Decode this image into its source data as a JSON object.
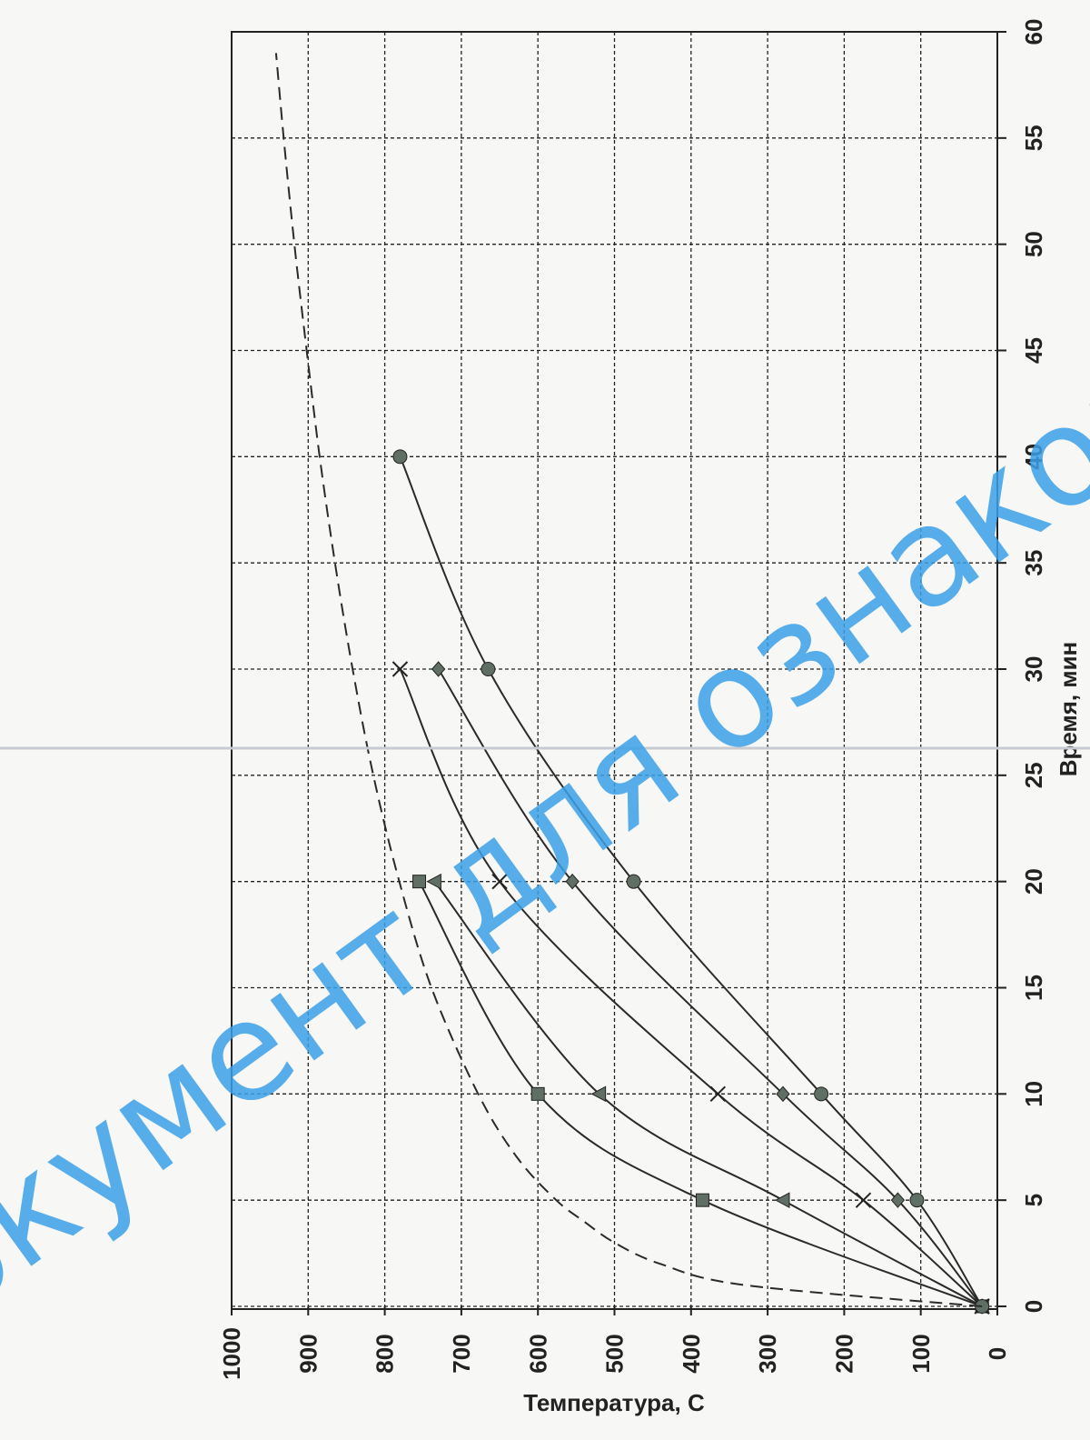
{
  "chart_data": {
    "type": "line",
    "title": "",
    "xlabel": "Время, мин",
    "ylabel": "Температура, С",
    "xlim": [
      0,
      60
    ],
    "ylim": [
      0,
      1000
    ],
    "x_ticks": [
      "0",
      "5",
      "10",
      "15",
      "20",
      "25",
      "30",
      "35",
      "40",
      "45",
      "50",
      "55",
      "60"
    ],
    "y_ticks": [
      "0",
      "100",
      "200",
      "300",
      "400",
      "500",
      "600",
      "700",
      "800",
      "900",
      "1000"
    ],
    "grid": true,
    "orientation": "rotated 90° counter-clockwise",
    "series": [
      {
        "marker": "square",
        "x": [
          0,
          5,
          10,
          20
        ],
        "y": [
          20,
          385,
          600,
          755
        ]
      },
      {
        "marker": "triangle",
        "x": [
          0,
          5,
          10,
          20
        ],
        "y": [
          20,
          280,
          520,
          735
        ]
      },
      {
        "marker": "cross",
        "x": [
          0,
          5,
          10,
          20,
          30
        ],
        "y": [
          20,
          175,
          365,
          650,
          780
        ]
      },
      {
        "marker": "diamond",
        "x": [
          0,
          5,
          10,
          20,
          30
        ],
        "y": [
          20,
          130,
          280,
          555,
          730
        ]
      },
      {
        "marker": "circle",
        "x": [
          0,
          5,
          10,
          20,
          30,
          40
        ],
        "y": [
          20,
          105,
          230,
          475,
          665,
          780
        ]
      },
      {
        "marker": "none",
        "style": "dashed",
        "x": [
          0,
          1,
          2,
          3,
          4,
          5,
          7,
          10,
          15,
          20,
          25,
          30,
          35,
          40,
          45,
          50,
          55,
          59
        ],
        "y": [
          20,
          330,
          440,
          500,
          540,
          576,
          627,
          678,
          739,
          781,
          815,
          842,
          865,
          885,
          902,
          918,
          932,
          942
        ]
      }
    ]
  },
  "watermark": "Документ для ознакомл",
  "colors": {
    "line": "#2a2a2a",
    "marker": "#5f6f64",
    "grid": "#222222",
    "watermark": "#3aa0e6"
  }
}
